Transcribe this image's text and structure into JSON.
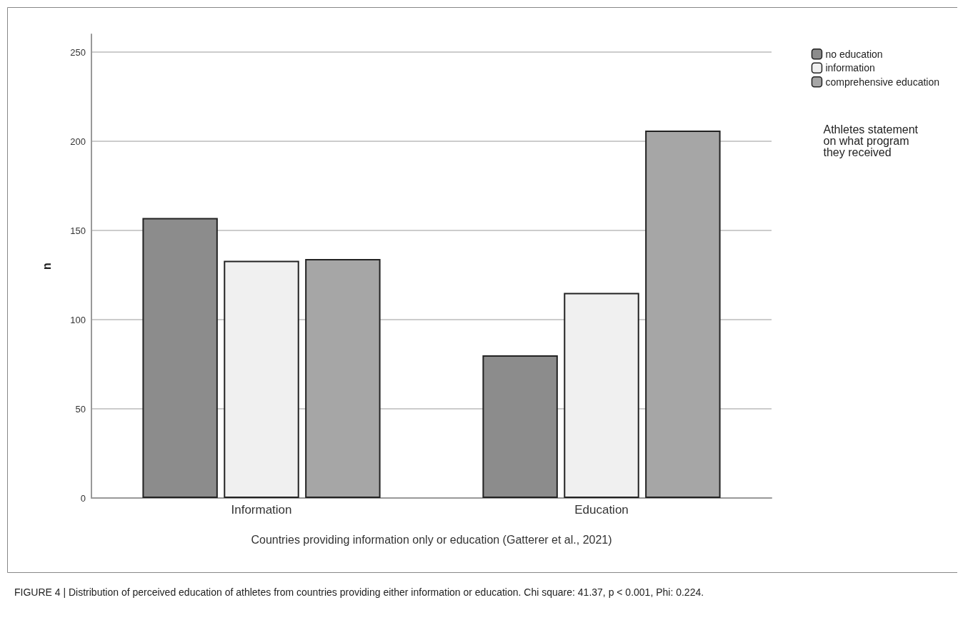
{
  "chart_data": {
    "type": "bar",
    "xlabel": "Countries providing information only or education (Gatterer et al., 2021)",
    "ylabel": "n",
    "legend_title": "Athletes statement\non what program\nthey received",
    "categories": [
      "Information",
      "Education"
    ],
    "series": [
      {
        "name": "no education",
        "color": "#8c8c8c",
        "values": [
          157,
          80
        ]
      },
      {
        "name": "information",
        "color": "#f0f0f0",
        "values": [
          133,
          115
        ]
      },
      {
        "name": "comprehensive education",
        "color": "#a6a6a6",
        "values": [
          134,
          206
        ]
      }
    ],
    "ylim": [
      0,
      260
    ],
    "yticks": [
      0,
      50,
      100,
      150,
      200,
      250
    ],
    "grid": "y",
    "legend": "top right",
    "annotations": [
      "FIGURE 4 | Distribution of perceived education of athletes from countries providing either information or education. Chi square: 41.37, p < 0.001, Phi: 0.224."
    ]
  }
}
